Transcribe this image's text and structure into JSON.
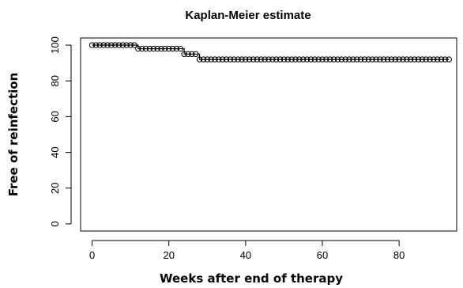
{
  "chart_data": {
    "type": "line",
    "title": "Kaplan-Meier estimate",
    "xlabel": "Weeks after end of therapy",
    "ylabel": "Free of reinfection",
    "xlim": [
      -3,
      95
    ],
    "ylim": [
      -4,
      104
    ],
    "x_ticks": [
      0,
      20,
      40,
      60,
      80
    ],
    "x_tick_labels": [
      "0",
      "20",
      "40",
      "60",
      "80"
    ],
    "y_ticks": [
      0,
      20,
      40,
      60,
      80,
      100
    ],
    "y_tick_labels": [
      "0",
      "20",
      "40",
      "60",
      "80",
      "100"
    ],
    "marker": "open-circle",
    "step": true,
    "series": [
      {
        "x": [
          0,
          1,
          2,
          3,
          4,
          5,
          6,
          7,
          8,
          9,
          10,
          11,
          12,
          13,
          14,
          15,
          16,
          17,
          18,
          19,
          20,
          21,
          22,
          23,
          24,
          25,
          26,
          27,
          28,
          29,
          30,
          31,
          32,
          33,
          34,
          35,
          36,
          37,
          38,
          39,
          40,
          41,
          42,
          43,
          44,
          45,
          46,
          47,
          48,
          49,
          50,
          51,
          52,
          53,
          54,
          55,
          56,
          57,
          58,
          59,
          60,
          61,
          62,
          63,
          64,
          65,
          66,
          67,
          68,
          69,
          70,
          71,
          72,
          73,
          74,
          75,
          76,
          77,
          78,
          79,
          80,
          81,
          82,
          83,
          84,
          85,
          86,
          87,
          88,
          89,
          90,
          91,
          92,
          93
        ],
        "y": [
          100,
          100,
          100,
          100,
          100,
          100,
          100,
          100,
          100,
          100,
          100,
          100,
          98,
          98,
          98,
          98,
          98,
          98,
          98,
          98,
          98,
          98,
          98,
          98,
          95,
          95,
          95,
          95,
          92,
          92,
          92,
          92,
          92,
          92,
          92,
          92,
          92,
          92,
          92,
          92,
          92,
          92,
          92,
          92,
          92,
          92,
          92,
          92,
          92,
          92,
          92,
          92,
          92,
          92,
          92,
          92,
          92,
          92,
          92,
          92,
          92,
          92,
          92,
          92,
          92,
          92,
          92,
          92,
          92,
          92,
          92,
          92,
          92,
          92,
          92,
          92,
          92,
          92,
          92,
          92,
          92,
          92,
          92,
          92,
          92,
          92,
          92,
          92,
          92,
          92,
          92,
          92,
          92,
          92
        ]
      }
    ]
  }
}
